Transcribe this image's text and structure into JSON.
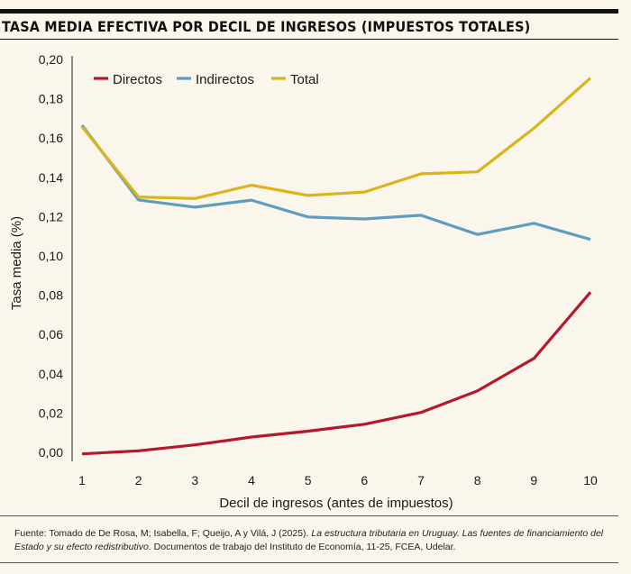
{
  "title": "TASA MEDIA EFECTIVA POR DECIL DE INGRESOS (IMPUESTOS TOTALES)",
  "footer": {
    "prefix": "Fuente: Tomado de De Rosa, M; Isabella, F; Queijo, A y Vilá, J (2025). ",
    "italic": "La estructura tributaria en Uruguay. Las fuentes de financiamiento del Estado y su efecto redistributivo",
    "suffix": ". Documentos de trabajo del Instituto de Economía, 11-25, FCEA, Udelar."
  },
  "chart_data": {
    "type": "line",
    "title": "TASA MEDIA EFECTIVA POR DECIL DE INGRESOS (IMPUESTOS TOTALES)",
    "xlabel": "Decil de ingresos (antes de impuestos)",
    "ylabel": "Tasa media (%)",
    "x": [
      1,
      2,
      3,
      4,
      5,
      6,
      7,
      8,
      9,
      10
    ],
    "ylim": [
      0,
      0.2
    ],
    "yticks": [
      "0,00",
      "0,02",
      "0,04",
      "0,06",
      "0,08",
      "0,10",
      "0,12",
      "0,14",
      "0,16",
      "0,18",
      "0,20"
    ],
    "grid": false,
    "legend_position": "top-left",
    "series": [
      {
        "name": "Directos",
        "color": "#b5182b",
        "values": [
          -0.0008,
          0.0008,
          0.0038,
          0.0078,
          0.0108,
          0.0143,
          0.0203,
          0.0313,
          0.0478,
          0.0815
        ]
      },
      {
        "name": "Indirectos",
        "color": "#5f9cbf",
        "values": [
          0.1665,
          0.1285,
          0.1248,
          0.1284,
          0.1198,
          0.1188,
          0.1207,
          0.1109,
          0.1166,
          0.1084
        ]
      },
      {
        "name": "Total",
        "color": "#d9b51a",
        "values": [
          0.1658,
          0.13,
          0.1292,
          0.136,
          0.1308,
          0.1325,
          0.1418,
          0.1428,
          0.165,
          0.1905
        ]
      }
    ]
  }
}
